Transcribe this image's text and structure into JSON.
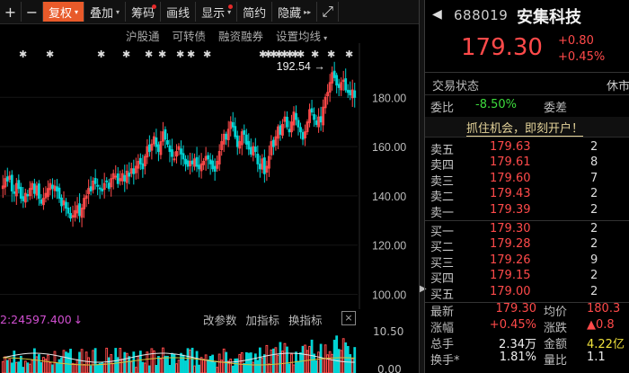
{
  "toolbar": {
    "items": [
      {
        "label": "+",
        "kind": "icon",
        "icon": "plus-icon"
      },
      {
        "label": "−",
        "kind": "icon",
        "icon": "minus-icon"
      },
      {
        "label": "复权",
        "active": true,
        "caret": "▾"
      },
      {
        "label": "叠加",
        "caret": "▾"
      },
      {
        "label": "筹码",
        "dot": true
      },
      {
        "label": "画线"
      },
      {
        "label": "显示",
        "caret": "▾",
        "dot": true
      },
      {
        "label": "简约"
      },
      {
        "label": "隐藏",
        "icon": "double-chevron-right-icon",
        "glyph": "▸▸"
      },
      {
        "label": "",
        "kind": "icon",
        "icon": "expand-icon",
        "glyph": "⤢"
      }
    ]
  },
  "submenu": [
    "沪股通",
    "可转债",
    "融资融券",
    "设置均线"
  ],
  "submenu_caret": "▾",
  "chart_annotations": {
    "high_label": "192.54",
    "arrow": "→",
    "event_marker": "✱"
  },
  "indicator": {
    "value": "2:24597.400",
    "arrow": "↓",
    "buttons": [
      "改参数",
      "加指标",
      "换指标"
    ],
    "close": "×"
  },
  "volume_axis": [
    "10.50",
    "0.00"
  ],
  "stock": {
    "code": "688019",
    "name": "安集科技",
    "price": "179.30",
    "change": "+0.80",
    "change_pct": "+0.45%"
  },
  "status": {
    "label": "交易状态",
    "value": "休市"
  },
  "ratio": {
    "label1": "委比",
    "value1": "-8.50%",
    "label2": "委差"
  },
  "promo": "抓住机会，即刻开户！",
  "asks": [
    {
      "label": "卖五",
      "price": "179.63",
      "vol": "2"
    },
    {
      "label": "卖四",
      "price": "179.61",
      "vol": "8"
    },
    {
      "label": "卖三",
      "price": "179.60",
      "vol": "7"
    },
    {
      "label": "卖二",
      "price": "179.43",
      "vol": "2"
    },
    {
      "label": "卖一",
      "price": "179.39",
      "vol": "2"
    }
  ],
  "bids": [
    {
      "label": "买一",
      "price": "179.30",
      "vol": "2"
    },
    {
      "label": "买二",
      "price": "179.28",
      "vol": "2"
    },
    {
      "label": "买三",
      "price": "179.26",
      "vol": "9"
    },
    {
      "label": "买四",
      "price": "179.15",
      "vol": "2"
    },
    {
      "label": "买五",
      "price": "179.00",
      "vol": "2"
    }
  ],
  "stats": [
    {
      "l1": "最新",
      "v1": "179.30",
      "l2": "均价",
      "v2": "180.3"
    },
    {
      "l1": "涨幅",
      "v1": "+0.45%",
      "l2": "涨跌",
      "v2": "▲0.8"
    },
    {
      "l1": "总手",
      "v1": "2.34万",
      "l2": "金额",
      "v2": "4.22亿"
    },
    {
      "l1": "换手*",
      "v1": "1.81%",
      "l2": "量比",
      "v2": "1.1"
    }
  ],
  "colors": {
    "up": "#ff4a4a",
    "down": "#00d4d4",
    "accent": "#e85a2a"
  },
  "chart_data": {
    "type": "candlestick",
    "y_ticks": [
      100.0,
      120.0,
      140.0,
      160.0,
      180.0
    ],
    "ylim": [
      94,
      202
    ],
    "high_marker": 192.54,
    "closes": [
      144,
      147,
      146,
      148,
      142,
      141,
      145,
      143,
      139,
      138,
      141,
      140,
      143,
      145,
      141,
      144,
      139,
      137,
      139,
      141,
      143,
      145,
      143,
      144,
      142,
      139,
      136,
      138,
      135,
      133,
      131,
      132,
      134,
      136,
      132,
      135,
      139,
      140,
      143,
      142,
      146,
      145,
      144,
      143,
      142,
      145,
      146,
      143,
      147,
      149,
      148,
      145,
      147,
      149,
      146,
      150,
      148,
      151,
      149,
      152,
      154,
      153,
      151,
      156,
      160,
      158,
      161,
      164,
      160,
      158,
      162,
      166,
      163,
      161,
      158,
      156,
      155,
      158,
      160,
      157,
      155,
      153,
      152,
      154,
      153,
      155,
      152,
      151,
      153,
      154,
      156,
      155,
      153,
      151,
      150,
      154,
      158,
      162,
      165,
      163,
      167,
      170,
      168,
      164,
      160,
      162,
      166,
      165,
      161,
      159,
      157,
      160,
      158,
      153,
      151,
      155,
      149,
      152,
      156,
      162,
      160,
      164,
      168,
      165,
      169,
      172,
      168,
      166,
      170,
      174,
      171,
      168,
      166,
      163,
      166,
      170,
      175,
      174,
      171,
      169,
      172,
      170,
      176,
      180,
      182,
      186,
      190,
      188,
      185,
      184,
      186,
      187,
      183,
      182,
      181,
      183,
      180
    ]
  }
}
